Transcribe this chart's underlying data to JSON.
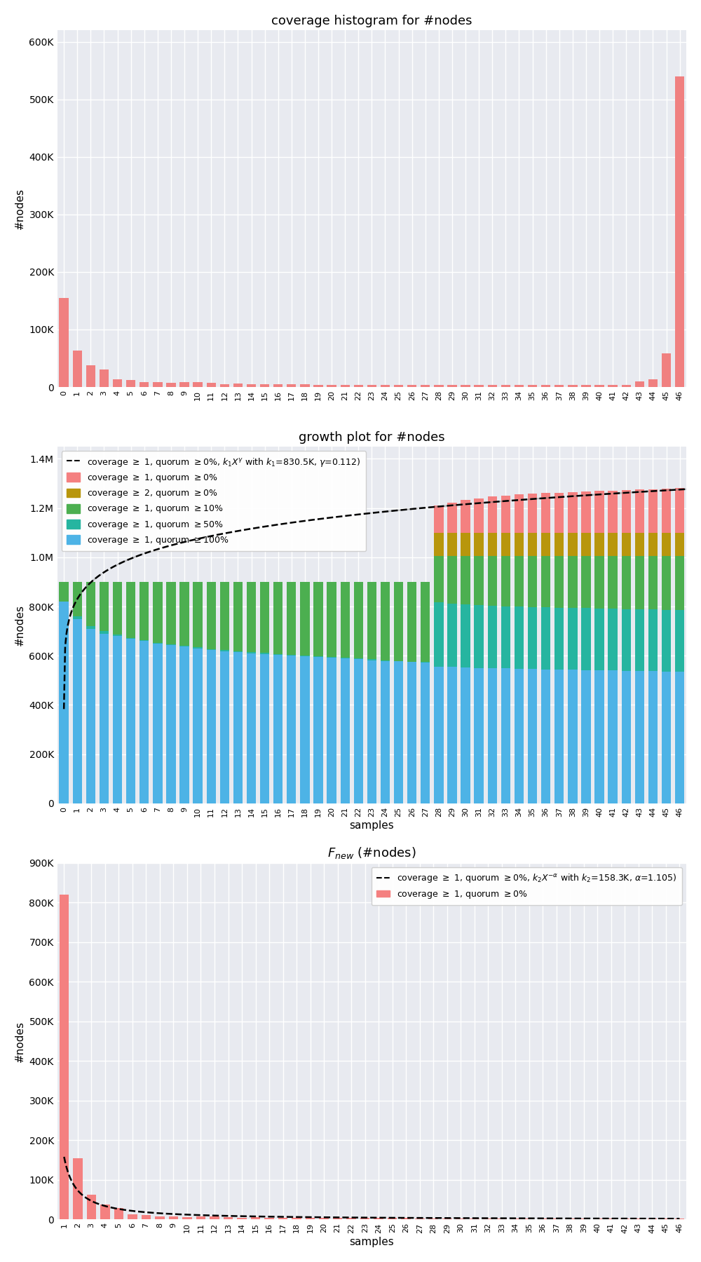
{
  "hist_xlabels": [
    "0",
    "1",
    "2",
    "3",
    "4",
    "5",
    "6",
    "7",
    "8",
    "9",
    "10",
    "11",
    "12",
    "13",
    "14",
    "15",
    "16",
    "17",
    "18",
    "19",
    "20",
    "21",
    "22",
    "23",
    "24",
    "25",
    "26",
    "27",
    "28",
    "29",
    "30",
    "31",
    "32",
    "33",
    "34",
    "35",
    "36",
    "37",
    "38",
    "39",
    "40",
    "41",
    "42",
    "43",
    "44",
    "45",
    "46"
  ],
  "hist_values": [
    155000,
    63000,
    38000,
    30000,
    14000,
    12000,
    8000,
    8000,
    7000,
    8000,
    8000,
    7000,
    5000,
    6000,
    5000,
    5000,
    5000,
    4500,
    4500,
    4000,
    4000,
    4000,
    4000,
    4000,
    4000,
    3500,
    3500,
    3500,
    3500,
    3500,
    3500,
    3500,
    3500,
    3500,
    3500,
    3500,
    3500,
    3500,
    3500,
    3500,
    3500,
    3500,
    3500,
    10000,
    13000,
    58000,
    540000
  ],
  "hist_color": "#f08080",
  "hist_title": "coverage histogram for #nodes",
  "hist_ylabel": "#nodes",
  "growth_title": "growth plot for #nodes",
  "growth_ylabel": "#nodes",
  "growth_xlabel": "samples",
  "growth_xlabels": [
    "0",
    "1",
    "2",
    "3",
    "4",
    "5",
    "6",
    "7",
    "8",
    "9",
    "10",
    "11",
    "12",
    "13",
    "14",
    "15",
    "16",
    "17",
    "18",
    "19",
    "20",
    "21",
    "22",
    "23",
    "24",
    "25",
    "26",
    "27",
    "28",
    "29",
    "30",
    "31",
    "32",
    "33",
    "34",
    "35",
    "36",
    "37",
    "38",
    "39",
    "40",
    "41",
    "42",
    "43",
    "44",
    "45",
    "46"
  ],
  "growth_blue": [
    820000,
    750000,
    710000,
    690000,
    680000,
    670000,
    660000,
    650000,
    643000,
    638000,
    630000,
    622000,
    618000,
    614000,
    610000,
    607000,
    603000,
    600000,
    597000,
    594000,
    591000,
    588000,
    585000,
    582000,
    579000,
    577000,
    574000,
    571000,
    556000,
    554000,
    552000,
    550000,
    549000,
    548000,
    547000,
    546000,
    545000,
    544000,
    543000,
    542000,
    541000,
    540000,
    539000,
    538000,
    537000,
    536000,
    535000
  ],
  "growth_teal": [
    820000,
    760000,
    720000,
    700000,
    685000,
    673000,
    663000,
    653000,
    647000,
    641000,
    634000,
    627000,
    623000,
    619000,
    615000,
    611000,
    606000,
    603000,
    600000,
    597000,
    594000,
    591000,
    588000,
    585000,
    582000,
    579000,
    576000,
    574000,
    816000,
    812000,
    808000,
    805000,
    803000,
    801000,
    799000,
    797000,
    796000,
    795000,
    794000,
    793000,
    792000,
    791000,
    790000,
    789000,
    788000,
    787000,
    786000
  ],
  "growth_green": [
    900000,
    900000,
    900000,
    900000,
    900000,
    900000,
    900000,
    900000,
    900000,
    900000,
    900000,
    900000,
    900000,
    900000,
    900000,
    900000,
    900000,
    900000,
    900000,
    900000,
    900000,
    900000,
    900000,
    900000,
    900000,
    900000,
    900000,
    900000,
    1005000,
    1005000,
    1005000,
    1005000,
    1005000,
    1005000,
    1005000,
    1005000,
    1005000,
    1005000,
    1005000,
    1005000,
    1005000,
    1005000,
    1005000,
    1005000,
    1005000,
    1005000,
    1005000
  ],
  "growth_olive": [
    900000,
    900000,
    900000,
    900000,
    900000,
    900000,
    900000,
    900000,
    900000,
    900000,
    900000,
    900000,
    900000,
    900000,
    900000,
    900000,
    900000,
    900000,
    900000,
    900000,
    900000,
    900000,
    900000,
    900000,
    900000,
    900000,
    900000,
    900000,
    1100000,
    1100000,
    1100000,
    1100000,
    1100000,
    1100000,
    1100000,
    1100000,
    1100000,
    1100000,
    1100000,
    1100000,
    1100000,
    1100000,
    1100000,
    1100000,
    1100000,
    1100000,
    1100000
  ],
  "growth_pink": [
    900000,
    900000,
    900000,
    900000,
    900000,
    900000,
    900000,
    900000,
    900000,
    900000,
    900000,
    900000,
    900000,
    900000,
    900000,
    900000,
    900000,
    900000,
    900000,
    900000,
    900000,
    900000,
    900000,
    900000,
    900000,
    900000,
    900000,
    900000,
    1210000,
    1222000,
    1232000,
    1240000,
    1246000,
    1251000,
    1255000,
    1258000,
    1261000,
    1263000,
    1265000,
    1267000,
    1269000,
    1271000,
    1273000,
    1275000,
    1277000,
    1279000,
    1282000
  ],
  "growth_fit_k1": 830500,
  "growth_fit_gamma": 0.112,
  "growth_color_blue": "#4db3e6",
  "growth_color_teal": "#26b5a0",
  "growth_color_green": "#4caf50",
  "growth_color_olive": "#b8960c",
  "growth_color_pink": "#f48080",
  "fnew_title": "$F_{new}$ (#nodes)",
  "fnew_ylabel": "#nodes",
  "fnew_xlabel": "samples",
  "fnew_xlabels": [
    "1",
    "2",
    "3",
    "4",
    "5",
    "6",
    "7",
    "8",
    "9",
    "10",
    "11",
    "12",
    "13",
    "14",
    "15",
    "16",
    "17",
    "18",
    "19",
    "20",
    "21",
    "22",
    "23",
    "24",
    "25",
    "26",
    "27",
    "28",
    "29",
    "30",
    "31",
    "32",
    "33",
    "34",
    "35",
    "36",
    "37",
    "38",
    "39",
    "40",
    "41",
    "42",
    "43",
    "44",
    "45",
    "46"
  ],
  "fnew_values": [
    820000,
    155000,
    63000,
    38000,
    30000,
    14000,
    12000,
    8000,
    8000,
    7000,
    8000,
    8000,
    7000,
    5000,
    6000,
    5000,
    5000,
    5000,
    4500,
    4500,
    4000,
    4000,
    4000,
    4000,
    4000,
    4000,
    3500,
    3500,
    3500,
    3500,
    3500,
    3500,
    3500,
    3500,
    3500,
    3500,
    3500,
    3500,
    3500,
    3500,
    3500,
    3500,
    3500,
    3500,
    3500,
    3500
  ],
  "fnew_fit_k2": 158300,
  "fnew_fit_alpha": 1.105,
  "fnew_color": "#f48080",
  "bg_color": "#e8eaf0",
  "grid_color": "white"
}
